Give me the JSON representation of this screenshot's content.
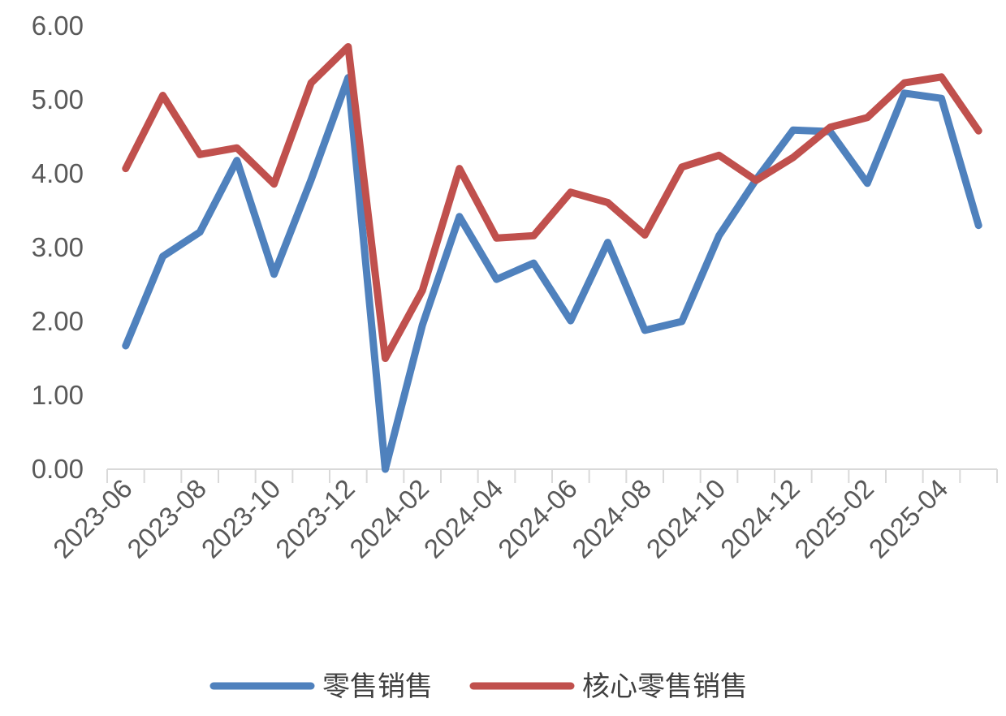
{
  "chart_data": {
    "type": "line",
    "x": [
      "2023-06",
      "2023-07",
      "2023-08",
      "2023-09",
      "2023-10",
      "2023-11",
      "2023-12",
      "2024-01",
      "2024-02",
      "2024-03",
      "2024-04",
      "2024-05",
      "2024-06",
      "2024-07",
      "2024-08",
      "2024-09",
      "2024-10",
      "2024-11",
      "2024-12",
      "2025-01",
      "2025-02",
      "2025-03",
      "2025-04",
      "2025-05"
    ],
    "x_tick_labels": [
      "2023-06",
      "2023-08",
      "2023-10",
      "2023-12",
      "2024-02",
      "2024-04",
      "2024-06",
      "2024-08",
      "2024-10",
      "2024-12",
      "2025-02",
      "2025-04"
    ],
    "y_tick_labels": [
      "0.00",
      "1.00",
      "2.00",
      "3.00",
      "4.00",
      "5.00",
      "6.00"
    ],
    "ylim": [
      0,
      6
    ],
    "grid": false,
    "legend_position": "bottom",
    "series": [
      {
        "name": "零售销售",
        "color": "#4f81bd",
        "values": [
          1.67,
          2.88,
          3.21,
          4.18,
          2.64,
          3.92,
          5.3,
          0.0,
          1.95,
          3.42,
          2.57,
          2.79,
          2.01,
          3.07,
          1.88,
          2.0,
          3.16,
          3.92,
          4.59,
          4.57,
          3.87,
          5.09,
          5.02,
          3.3
        ]
      },
      {
        "name": "核心零售销售",
        "color": "#c0504d",
        "values": [
          4.07,
          5.06,
          4.26,
          4.35,
          3.86,
          5.23,
          5.72,
          1.5,
          2.42,
          4.07,
          3.13,
          3.16,
          3.75,
          3.61,
          3.17,
          4.09,
          4.25,
          3.91,
          4.22,
          4.63,
          4.76,
          5.23,
          5.31,
          4.58
        ]
      }
    ]
  }
}
